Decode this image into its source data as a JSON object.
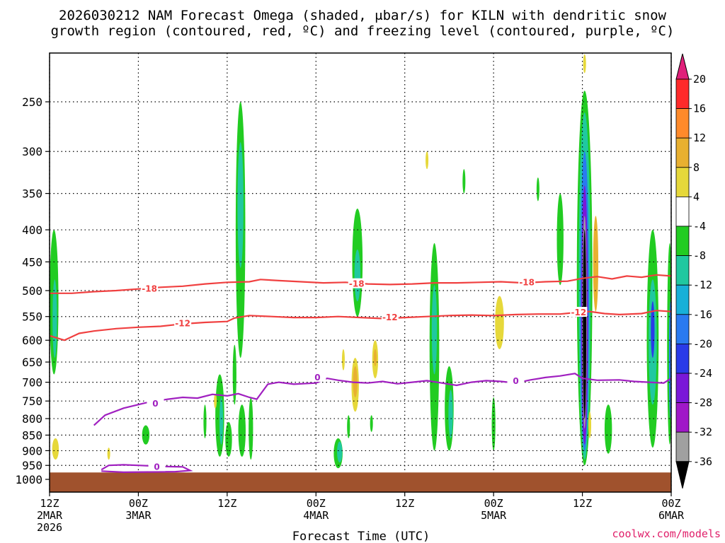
{
  "chart_data": {
    "type": "heatmap",
    "title_lines": [
      "2026030212 NAM Forecast Omega (shaded, μbar/s) for KILN with dendritic snow",
      "growth region (contoured, red, ºC) and freezing level (contoured, purple, ºC)"
    ],
    "xlabel": "Forecast Time (UTC)",
    "ylabel": "",
    "credit": "coolwx.com/models",
    "x_ticks": [
      {
        "hour": 0,
        "lines": [
          "12Z",
          "2MAR",
          "2026"
        ]
      },
      {
        "hour": 12,
        "lines": [
          "00Z",
          "3MAR"
        ]
      },
      {
        "hour": 24,
        "lines": [
          "12Z"
        ]
      },
      {
        "hour": 36,
        "lines": [
          "00Z",
          "4MAR"
        ]
      },
      {
        "hour": 48,
        "lines": [
          "12Z"
        ]
      },
      {
        "hour": 60,
        "lines": [
          "00Z",
          "5MAR"
        ]
      },
      {
        "hour": 72,
        "lines": [
          "12Z"
        ]
      },
      {
        "hour": 84,
        "lines": [
          "00Z",
          "6MAR"
        ]
      }
    ],
    "xlim": [
      0,
      84
    ],
    "y_ticks": [
      250,
      300,
      350,
      400,
      450,
      500,
      550,
      600,
      650,
      700,
      750,
      800,
      850,
      900,
      950,
      1000
    ],
    "ylim": [
      200,
      1000
    ],
    "y_scale": "log-pressure",
    "grid": true,
    "colorbar": {
      "labels": [
        "20",
        "16",
        "12",
        "8",
        "4",
        "-4",
        "-8",
        "-12",
        "-16",
        "-20",
        "-24",
        "-28",
        "-32",
        "-36"
      ],
      "colors": [
        "#ff2a2a",
        "#ff8a2a",
        "#e8b030",
        "#e6d83a",
        "#ffffff",
        "#22cc22",
        "#20c8a0",
        "#18b0d8",
        "#2a7af0",
        "#2a3ae8",
        "#7a18d8",
        "#a018c8",
        "#a0a0a0",
        "#000000"
      ],
      "top_color": "#e0207a"
    },
    "ground_color": "#a0522d",
    "ground_pressure": 975,
    "contours": [
      {
        "name": "-18",
        "color": "#f04040",
        "label": "-18",
        "points": [
          [
            0,
            505
          ],
          [
            3,
            505
          ],
          [
            6,
            502
          ],
          [
            9,
            500
          ],
          [
            12,
            497
          ],
          [
            15,
            494
          ],
          [
            18,
            492
          ],
          [
            21,
            488
          ],
          [
            24,
            485
          ],
          [
            27,
            484
          ],
          [
            28.5,
            480
          ],
          [
            31,
            482
          ],
          [
            34,
            484
          ],
          [
            37,
            486
          ],
          [
            40,
            485
          ],
          [
            43,
            488
          ],
          [
            46,
            489
          ],
          [
            49,
            488
          ],
          [
            52,
            486
          ],
          [
            55,
            486
          ],
          [
            58,
            485
          ],
          [
            61,
            484
          ],
          [
            64,
            486
          ],
          [
            67,
            484
          ],
          [
            70,
            483
          ],
          [
            72,
            478
          ],
          [
            74,
            475
          ],
          [
            76,
            479
          ],
          [
            78,
            474
          ],
          [
            80,
            476
          ],
          [
            82,
            472
          ],
          [
            84,
            474
          ]
        ],
        "label_at": [
          [
            13.5,
            497
          ],
          [
            41.5,
            488
          ],
          [
            64.5,
            485
          ]
        ]
      },
      {
        "name": "-12",
        "color": "#f04040",
        "label": "-12",
        "points": [
          [
            0,
            590
          ],
          [
            2,
            600
          ],
          [
            4,
            585
          ],
          [
            6,
            580
          ],
          [
            9,
            575
          ],
          [
            12,
            572
          ],
          [
            15,
            570
          ],
          [
            18,
            565
          ],
          [
            21,
            562
          ],
          [
            24,
            560
          ],
          [
            25,
            553
          ],
          [
            27,
            548
          ],
          [
            30,
            550
          ],
          [
            33,
            552
          ],
          [
            36,
            552
          ],
          [
            39,
            550
          ],
          [
            42,
            552
          ],
          [
            45,
            554
          ],
          [
            48,
            552
          ],
          [
            51,
            550
          ],
          [
            54,
            548
          ],
          [
            57,
            547
          ],
          [
            60,
            548
          ],
          [
            63,
            546
          ],
          [
            66,
            545
          ],
          [
            69,
            545
          ],
          [
            71,
            542
          ],
          [
            73,
            540
          ],
          [
            75,
            544
          ],
          [
            77,
            546
          ],
          [
            80,
            544
          ],
          [
            82,
            538
          ],
          [
            84,
            540
          ]
        ],
        "label_at": [
          [
            18,
            564
          ],
          [
            46,
            552
          ],
          [
            71.5,
            542
          ]
        ]
      },
      {
        "name": "0",
        "color": "#a020c0",
        "label": "0",
        "points": [
          [
            6,
            820
          ],
          [
            7.5,
            790
          ],
          [
            10,
            770
          ],
          [
            13,
            755
          ],
          [
            16,
            745
          ],
          [
            18,
            740
          ],
          [
            20,
            742
          ],
          [
            22,
            732
          ],
          [
            24,
            736
          ],
          [
            25.5,
            730
          ],
          [
            27,
            740
          ],
          [
            28,
            745
          ],
          [
            29.5,
            705
          ],
          [
            31,
            700
          ],
          [
            33,
            705
          ],
          [
            36,
            702
          ],
          [
            37.5,
            690
          ],
          [
            39,
            695
          ],
          [
            41,
            700
          ],
          [
            43,
            702
          ],
          [
            45,
            698
          ],
          [
            47,
            704
          ],
          [
            49,
            700
          ],
          [
            51,
            696
          ],
          [
            53,
            702
          ],
          [
            55,
            708
          ],
          [
            57,
            700
          ],
          [
            59,
            696
          ],
          [
            61,
            698
          ],
          [
            63,
            702
          ],
          [
            65,
            694
          ],
          [
            67,
            688
          ],
          [
            69,
            684
          ],
          [
            71,
            678
          ],
          [
            72,
            690
          ],
          [
            74,
            695
          ],
          [
            77,
            694
          ],
          [
            79,
            698
          ],
          [
            81,
            700
          ],
          [
            83,
            702
          ],
          [
            84,
            690
          ]
        ],
        "label_at": [
          [
            14.3,
            757
          ],
          [
            36.2,
            688
          ],
          [
            63,
            697
          ]
        ]
      },
      {
        "name": "0-low",
        "color": "#a020c0",
        "label": "0",
        "points": [
          [
            7,
            965
          ],
          [
            8,
            950
          ],
          [
            10,
            948
          ],
          [
            12,
            950
          ],
          [
            14,
            952
          ],
          [
            16,
            954
          ],
          [
            18,
            955
          ],
          [
            19,
            968
          ],
          [
            17,
            972
          ],
          [
            14,
            973
          ],
          [
            10,
            974
          ],
          [
            7,
            970
          ]
        ],
        "label_at": [
          [
            14.5,
            955
          ]
        ]
      }
    ],
    "blobs": [
      {
        "hour": 0.6,
        "p_top": 400,
        "p_bot": 680,
        "w": 1.2,
        "color": "#22cc22"
      },
      {
        "hour": 0.7,
        "p_top": 480,
        "p_bot": 640,
        "w": 0.6,
        "color": "#20c8a0"
      },
      {
        "hour": 0.8,
        "p_top": 860,
        "p_bot": 930,
        "w": 0.9,
        "color": "#e6d83a"
      },
      {
        "hour": 8.0,
        "p_top": 890,
        "p_bot": 930,
        "w": 0.3,
        "color": "#e6d83a"
      },
      {
        "hour": 13.0,
        "p_top": 820,
        "p_bot": 880,
        "w": 1.0,
        "color": "#22cc22"
      },
      {
        "hour": 21.0,
        "p_top": 760,
        "p_bot": 860,
        "w": 0.4,
        "color": "#22cc22"
      },
      {
        "hour": 23.0,
        "p_top": 680,
        "p_bot": 920,
        "w": 1.2,
        "color": "#22cc22"
      },
      {
        "hour": 23.2,
        "p_top": 740,
        "p_bot": 880,
        "w": 0.5,
        "color": "#20c8a0"
      },
      {
        "hour": 25.0,
        "p_top": 610,
        "p_bot": 760,
        "w": 0.5,
        "color": "#22cc22"
      },
      {
        "hour": 25.8,
        "p_top": 250,
        "p_bot": 640,
        "w": 1.3,
        "color": "#22cc22"
      },
      {
        "hour": 25.8,
        "p_top": 290,
        "p_bot": 460,
        "w": 0.8,
        "color": "#20c8a0"
      },
      {
        "hour": 26.0,
        "p_top": 760,
        "p_bot": 920,
        "w": 1.0,
        "color": "#22cc22"
      },
      {
        "hour": 24.2,
        "p_top": 810,
        "p_bot": 920,
        "w": 0.9,
        "color": "#22cc22"
      },
      {
        "hour": 27.2,
        "p_top": 740,
        "p_bot": 930,
        "w": 0.6,
        "color": "#22cc22"
      },
      {
        "hour": 22.4,
        "p_top": 730,
        "p_bot": 770,
        "w": 0.3,
        "color": "#e6d83a"
      },
      {
        "hour": 39.0,
        "p_top": 860,
        "p_bot": 960,
        "w": 1.2,
        "color": "#22cc22"
      },
      {
        "hour": 39.2,
        "p_top": 870,
        "p_bot": 940,
        "w": 0.7,
        "color": "#20c8a0"
      },
      {
        "hour": 40.4,
        "p_top": 790,
        "p_bot": 860,
        "w": 0.4,
        "color": "#22cc22"
      },
      {
        "hour": 41.3,
        "p_top": 640,
        "p_bot": 780,
        "w": 1.0,
        "color": "#e6d83a"
      },
      {
        "hour": 41.3,
        "p_top": 660,
        "p_bot": 740,
        "w": 0.6,
        "color": "#e8b030"
      },
      {
        "hour": 41.6,
        "p_top": 370,
        "p_bot": 550,
        "w": 1.4,
        "color": "#22cc22"
      },
      {
        "hour": 41.6,
        "p_top": 430,
        "p_bot": 520,
        "w": 0.8,
        "color": "#20c8a0"
      },
      {
        "hour": 44.0,
        "p_top": 600,
        "p_bot": 690,
        "w": 0.8,
        "color": "#e6d83a"
      },
      {
        "hour": 44.0,
        "p_top": 620,
        "p_bot": 660,
        "w": 0.4,
        "color": "#e8b030"
      },
      {
        "hour": 43.5,
        "p_top": 790,
        "p_bot": 840,
        "w": 0.3,
        "color": "#22cc22"
      },
      {
        "hour": 39.7,
        "p_top": 620,
        "p_bot": 670,
        "w": 0.3,
        "color": "#e6d83a"
      },
      {
        "hour": 51.0,
        "p_top": 300,
        "p_bot": 320,
        "w": 0.3,
        "color": "#e6d83a"
      },
      {
        "hour": 52.0,
        "p_top": 420,
        "p_bot": 900,
        "w": 1.3,
        "color": "#22cc22"
      },
      {
        "hour": 52.0,
        "p_top": 490,
        "p_bot": 680,
        "w": 0.7,
        "color": "#20c8a0"
      },
      {
        "hour": 54.0,
        "p_top": 660,
        "p_bot": 900,
        "w": 1.2,
        "color": "#22cc22"
      },
      {
        "hour": 54.2,
        "p_top": 720,
        "p_bot": 860,
        "w": 0.6,
        "color": "#20c8a0"
      },
      {
        "hour": 56.0,
        "p_top": 320,
        "p_bot": 350,
        "w": 0.3,
        "color": "#22cc22"
      },
      {
        "hour": 60.0,
        "p_top": 740,
        "p_bot": 900,
        "w": 0.5,
        "color": "#22cc22"
      },
      {
        "hour": 60.8,
        "p_top": 510,
        "p_bot": 620,
        "w": 1.2,
        "color": "#e6d83a"
      },
      {
        "hour": 66.0,
        "p_top": 330,
        "p_bot": 360,
        "w": 0.3,
        "color": "#22cc22"
      },
      {
        "hour": 69.0,
        "p_top": 350,
        "p_bot": 490,
        "w": 0.9,
        "color": "#22cc22"
      },
      {
        "hour": 72.3,
        "p_top": 240,
        "p_bot": 950,
        "w": 2.1,
        "color": "#22cc22"
      },
      {
        "hour": 72.3,
        "p_top": 260,
        "p_bot": 930,
        "w": 1.6,
        "color": "#20c8a0"
      },
      {
        "hour": 72.3,
        "p_top": 300,
        "p_bot": 900,
        "w": 1.2,
        "color": "#2a7af0"
      },
      {
        "hour": 72.3,
        "p_top": 340,
        "p_bot": 880,
        "w": 0.9,
        "color": "#7a18d8"
      },
      {
        "hour": 72.3,
        "p_top": 380,
        "p_bot": 830,
        "w": 0.6,
        "color": "#a0a0a0"
      },
      {
        "hour": 72.3,
        "p_top": 400,
        "p_bot": 800,
        "w": 0.45,
        "color": "#000000"
      },
      {
        "hour": 72.3,
        "p_top": 210,
        "p_bot": 225,
        "w": 0.3,
        "color": "#e6d83a"
      },
      {
        "hour": 73.8,
        "p_top": 380,
        "p_bot": 540,
        "w": 0.7,
        "color": "#e8b030"
      },
      {
        "hour": 73.0,
        "p_top": 780,
        "p_bot": 860,
        "w": 0.3,
        "color": "#e6d83a"
      },
      {
        "hour": 75.5,
        "p_top": 760,
        "p_bot": 910,
        "w": 1.0,
        "color": "#22cc22"
      },
      {
        "hour": 81.5,
        "p_top": 400,
        "p_bot": 890,
        "w": 1.6,
        "color": "#22cc22"
      },
      {
        "hour": 81.5,
        "p_top": 480,
        "p_bot": 760,
        "w": 1.1,
        "color": "#20c8a0"
      },
      {
        "hour": 81.5,
        "p_top": 520,
        "p_bot": 640,
        "w": 0.5,
        "color": "#2a3ae8"
      },
      {
        "hour": 83.8,
        "p_top": 420,
        "p_bot": 880,
        "w": 0.7,
        "color": "#22cc22"
      },
      {
        "hour": 83.9,
        "p_top": 520,
        "p_bot": 800,
        "w": 0.4,
        "color": "#2a7af0"
      }
    ]
  }
}
